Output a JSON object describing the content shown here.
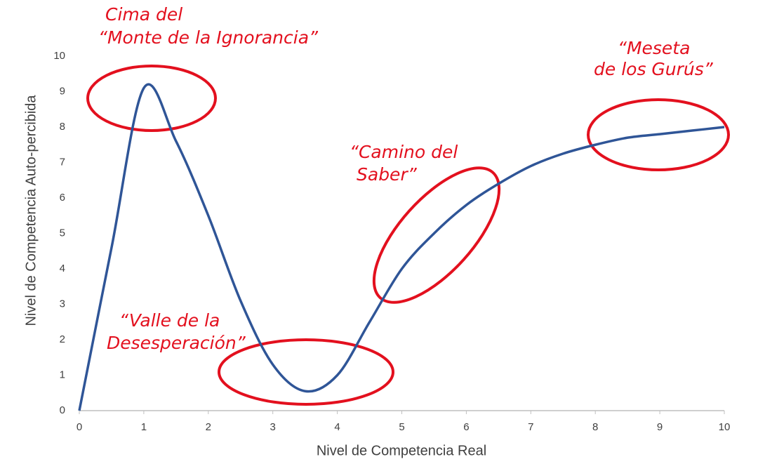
{
  "chart_data": {
    "type": "line",
    "xlabel": "Nivel de Competencia Real",
    "ylabel": "Nivel de Competencia Auto-percibida",
    "x": [
      0,
      0.5,
      1,
      1.5,
      2,
      2.5,
      3,
      3.5,
      4,
      4.5,
      5,
      5.5,
      6,
      6.5,
      7,
      7.5,
      8,
      8.5,
      9,
      9.5,
      10
    ],
    "series": [
      {
        "color": "#2f5597",
        "values": [
          0,
          4.6,
          9.1,
          7.6,
          5.5,
          3.1,
          1.3,
          0.55,
          1.0,
          2.5,
          4.0,
          5.0,
          5.8,
          6.4,
          6.9,
          7.25,
          7.5,
          7.7,
          7.8,
          7.9,
          8.0
        ]
      }
    ],
    "xlim": [
      0,
      10
    ],
    "xticks": [
      0,
      1,
      2,
      3,
      4,
      5,
      6,
      7,
      8,
      9,
      10
    ],
    "ylim": [
      0,
      10
    ],
    "yticks": [
      0,
      1,
      2,
      3,
      4,
      5,
      6,
      7,
      8,
      9,
      10
    ],
    "grid": false,
    "annotation_color": "#e3101e",
    "annotations": [
      [
        "Cima del",
        "“Monte de la Ignorancia”"
      ],
      [
        "“Valle de la",
        "Desesperación”"
      ],
      [
        "“Camino del",
        "Saber”"
      ],
      [
        "“Meseta",
        "de los Gurús”"
      ]
    ]
  }
}
